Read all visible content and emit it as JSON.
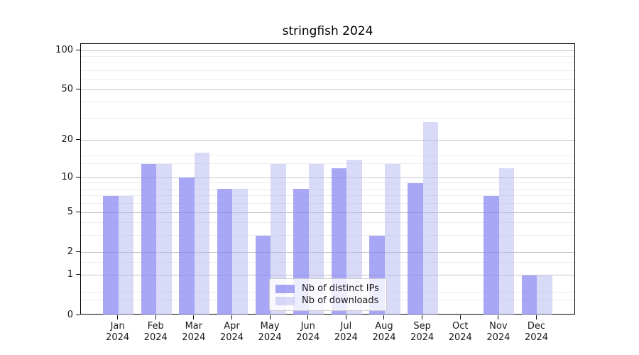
{
  "title": "stringfish 2024",
  "chart_data": {
    "type": "bar",
    "title": "stringfish 2024",
    "categories": [
      "Jan",
      "Feb",
      "Mar",
      "Apr",
      "May",
      "Jun",
      "Jul",
      "Aug",
      "Sep",
      "Oct",
      "Nov",
      "Dec"
    ],
    "x_tick_year": "2024",
    "series": [
      {
        "name": "Nb of distinct IPs",
        "color": "#8282F2",
        "alpha": 0.7,
        "values": [
          7,
          13,
          10,
          8,
          3,
          8,
          12,
          3,
          9,
          0,
          7,
          1
        ]
      },
      {
        "name": "Nb of downloads",
        "color": "#B4B4F2",
        "alpha": 0.5,
        "values": [
          7,
          13,
          16,
          8,
          13,
          13,
          14,
          13,
          28,
          0,
          12,
          1
        ]
      }
    ],
    "yscale": "log1p",
    "ylim": [
      0,
      112
    ],
    "yticks": [
      0,
      1,
      2,
      5,
      10,
      20,
      50,
      100
    ],
    "minor_yticks": [
      0.3,
      0.5,
      1.5,
      3,
      4,
      6,
      7,
      8,
      9,
      13,
      15,
      30,
      40,
      60,
      70,
      80,
      90
    ],
    "grid": true,
    "legend_position": "lower center-left"
  },
  "legend": {
    "items": [
      {
        "label": "Nb of distinct IPs"
      },
      {
        "label": "Nb of downloads"
      }
    ]
  },
  "colors": {
    "major_grid": "#c4c4c4",
    "minor_grid": "#ededed",
    "axis": "#000000",
    "text": "#1a1a1a"
  }
}
